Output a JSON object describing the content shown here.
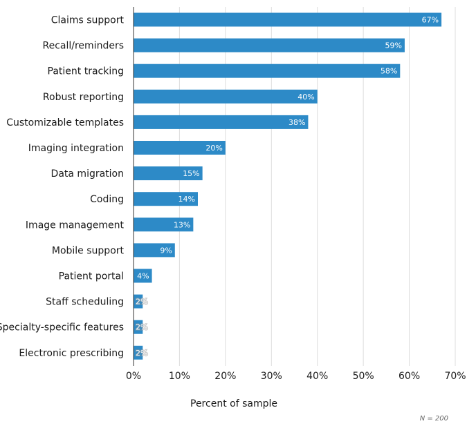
{
  "chart_data": {
    "type": "bar",
    "orientation": "horizontal",
    "categories": [
      "Claims support",
      "Recall/reminders",
      "Patient tracking",
      "Robust reporting",
      "Customizable templates",
      "Imaging integration",
      "Data migration",
      "Coding",
      "Image management",
      "Mobile support",
      "Patient portal",
      "Staff scheduling",
      "Specialty-specific features",
      "Electronic prescribing"
    ],
    "values": [
      67,
      59,
      58,
      40,
      38,
      20,
      15,
      14,
      13,
      9,
      4,
      2,
      2,
      2
    ],
    "data_labels": [
      "67%",
      "59%",
      "58%",
      "40%",
      "38%",
      "20%",
      "15%",
      "14%",
      "13%",
      "9%",
      "4%",
      "2%",
      "2%",
      "2%"
    ],
    "xlim": [
      0,
      70
    ],
    "x_ticks": [
      "0%",
      "10%",
      "20%",
      "30%",
      "40%",
      "50%",
      "60%",
      "70%"
    ],
    "xlabel": "Percent of sample",
    "ylabel": "",
    "grid": "vertical",
    "bar_color": "#2d8ac7",
    "note": "N = 200"
  }
}
